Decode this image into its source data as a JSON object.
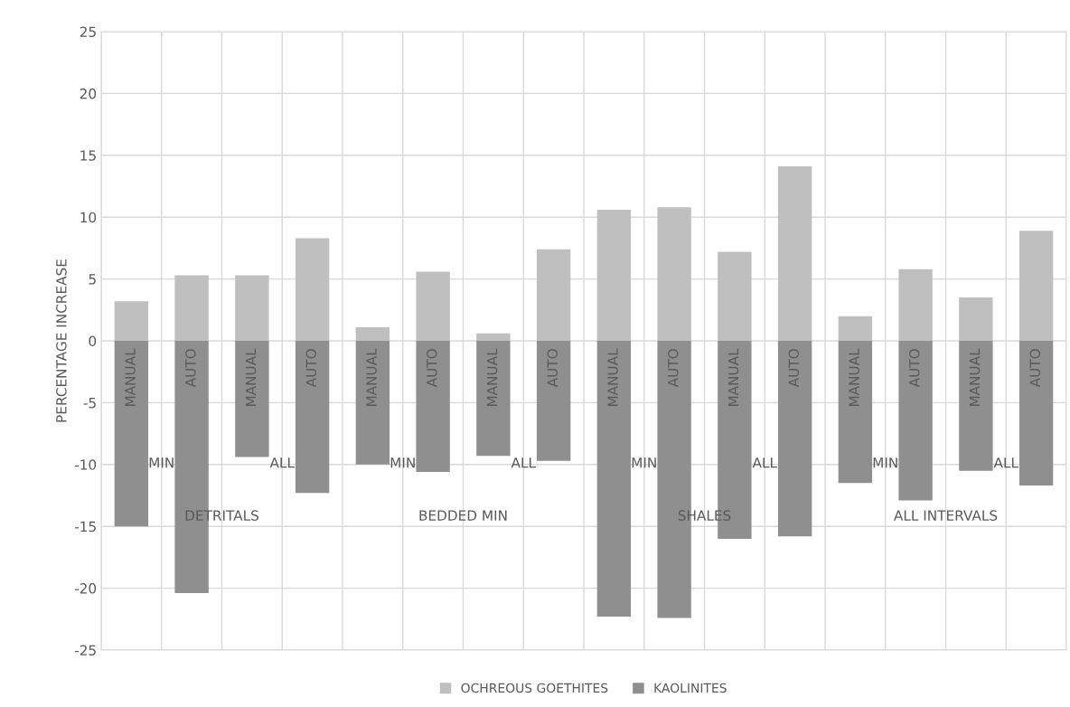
{
  "chart_data": {
    "type": "bar",
    "stacked": true,
    "ylabel": "PERCENTAGE INCREASE",
    "categories": [
      "MANUAL",
      "AUTO",
      "MANUAL",
      "AUTO",
      "MANUAL",
      "AUTO",
      "MANUAL",
      "AUTO",
      "MANUAL",
      "AUTO",
      "MANUAL",
      "AUTO",
      "MANUAL",
      "AUTO",
      "MANUAL",
      "AUTO"
    ],
    "annotations": [
      "MIN",
      "ALL",
      "MIN",
      "ALL",
      "MIN",
      "ALL",
      "MIN",
      "ALL",
      "DETRITALS",
      "BEDDED MIN",
      "SHALES",
      "ALL INTERVALS"
    ],
    "series": [
      {
        "name": "OCHREOUS GOETHITES",
        "color": "#bfbfbf",
        "values": [
          3.2,
          5.3,
          5.3,
          8.3,
          1.1,
          5.6,
          0.6,
          7.4,
          10.6,
          10.8,
          7.2,
          14.1,
          2.0,
          5.8,
          3.5,
          8.9
        ]
      },
      {
        "name": "KAOLINITES",
        "color": "#8f8f8f",
        "values": [
          -15.0,
          -20.4,
          -9.4,
          -12.3,
          -10.0,
          -10.6,
          -9.3,
          -9.7,
          -22.3,
          -22.4,
          -16.0,
          -15.8,
          -11.5,
          -12.9,
          -10.5,
          -11.7
        ]
      }
    ],
    "ylim": [
      -25,
      25
    ],
    "yticks": [
      -25,
      -20,
      -15,
      -10,
      -5,
      0,
      5,
      10,
      15,
      20,
      25
    ],
    "grid": true,
    "legend": "bottom"
  }
}
